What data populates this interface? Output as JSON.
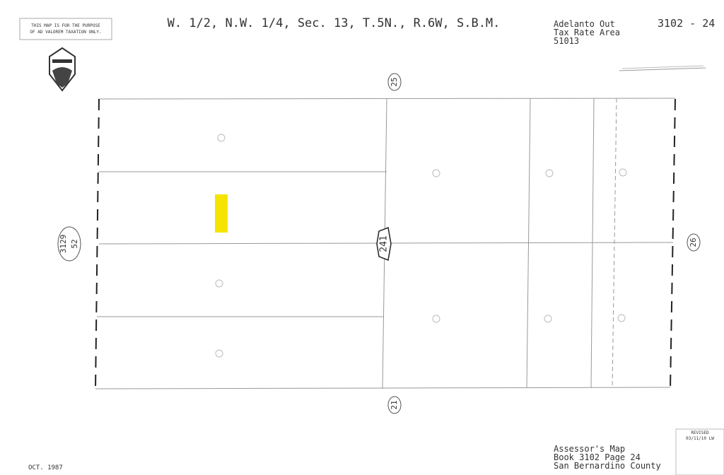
{
  "header": {
    "disclaimer": [
      "THIS MAP IS FOR THE PURPOSE",
      "OF AD VALOREM TAXATION ONLY."
    ],
    "title": "W. 1/2, N.W. 1/4, Sec. 13, T.5N., R.6W, S.B.M.",
    "tax_area": [
      "Adelanto Out",
      "Tax Rate Area",
      "51013"
    ],
    "map_number": "3102 - 24"
  },
  "map": {
    "labels": {
      "north": "25",
      "west": [
        "3129",
        "52"
      ],
      "center": "241",
      "east": "26",
      "south": "21"
    }
  },
  "footer": {
    "date": "OCT. 1987",
    "revised": "REVISED",
    "revised_date": "03/11/10 LW",
    "caption": [
      "Assessor's Map",
      "Book 3102 Page 24",
      "San Bernardino County"
    ]
  }
}
